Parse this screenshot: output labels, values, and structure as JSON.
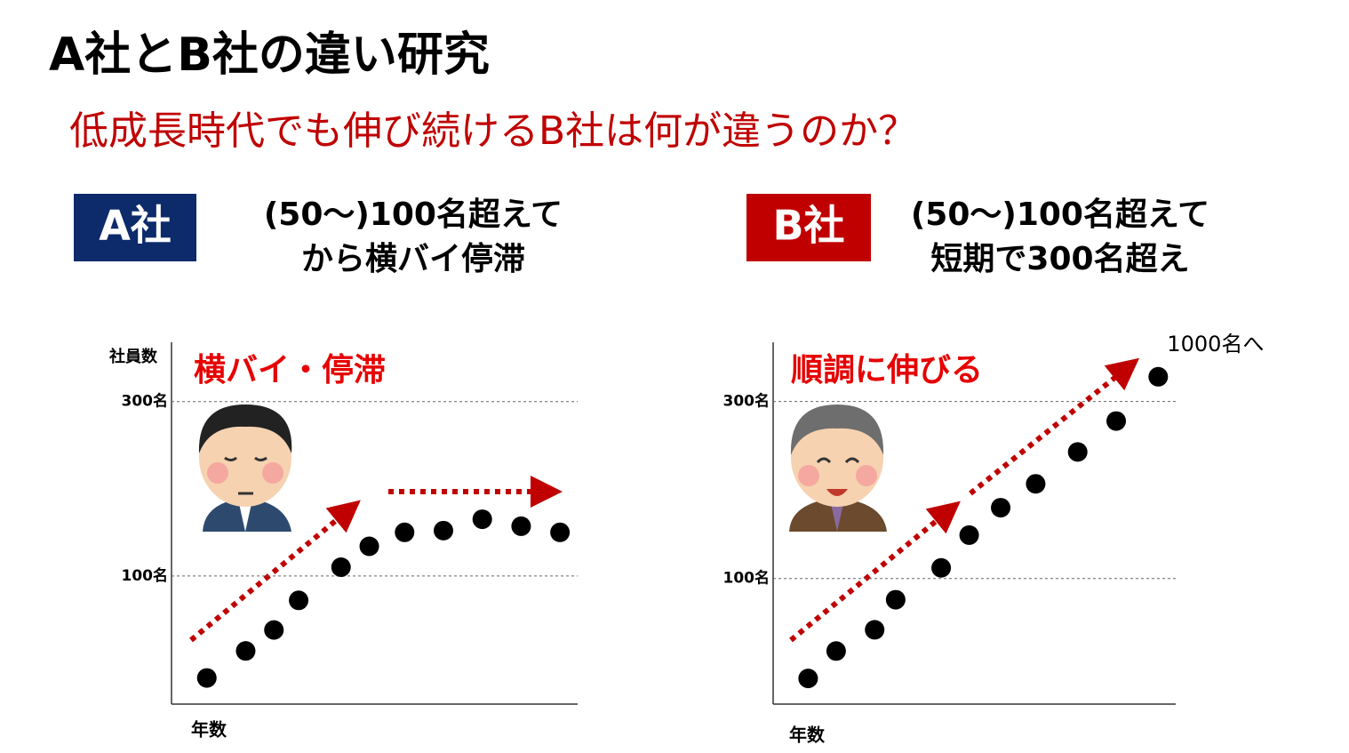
{
  "slide": {
    "title": "A社とB社の違い研究",
    "subtitle": "低成長時代でも伸び続けるB社は何が違うのか？",
    "panels": [
      {
        "badge": "A社",
        "lines": [
          "(50～)100名超えて",
          "から横バイ停滞"
        ]
      },
      {
        "badge": "B社",
        "lines": [
          "(50～)100名超えて",
          "短期で300名超え"
        ]
      }
    ]
  },
  "chart_data": [
    {
      "type": "scatter",
      "ylabel": "社員数",
      "xlabel": "年数",
      "annotation": "横バイ・停滞",
      "color": "#000000",
      "grid": true,
      "x": [
        1.0,
        2.1,
        2.9,
        3.6,
        4.8,
        5.6,
        6.6,
        7.7,
        8.8,
        9.9,
        11.0
      ],
      "values": [
        -17,
        14,
        38,
        72,
        110,
        134,
        150,
        152,
        165,
        157,
        150
      ],
      "xlim": [
        0,
        11.5
      ],
      "ylim": [
        -47,
        368
      ],
      "yticks": [
        {
          "value": 100,
          "label": "100名"
        },
        {
          "value": 300,
          "label": "300名"
        }
      ]
    },
    {
      "type": "scatter",
      "xlabel": "年数",
      "annotation": "順調に伸びる",
      "note": "1000名へ",
      "color": "#000000",
      "grid": true,
      "x": [
        1.0,
        1.8,
        2.9,
        3.5,
        4.8,
        5.6,
        6.5,
        7.5,
        8.7,
        9.8,
        11.0
      ],
      "values": [
        -13,
        18,
        42,
        76,
        112,
        149,
        180,
        207,
        243,
        278,
        328
      ],
      "xlim": [
        0,
        11.5
      ],
      "ylim": [
        -42,
        367
      ],
      "yticks": [
        {
          "value": 100,
          "label": "100名"
        },
        {
          "value": 300,
          "label": "300名"
        }
      ]
    }
  ]
}
